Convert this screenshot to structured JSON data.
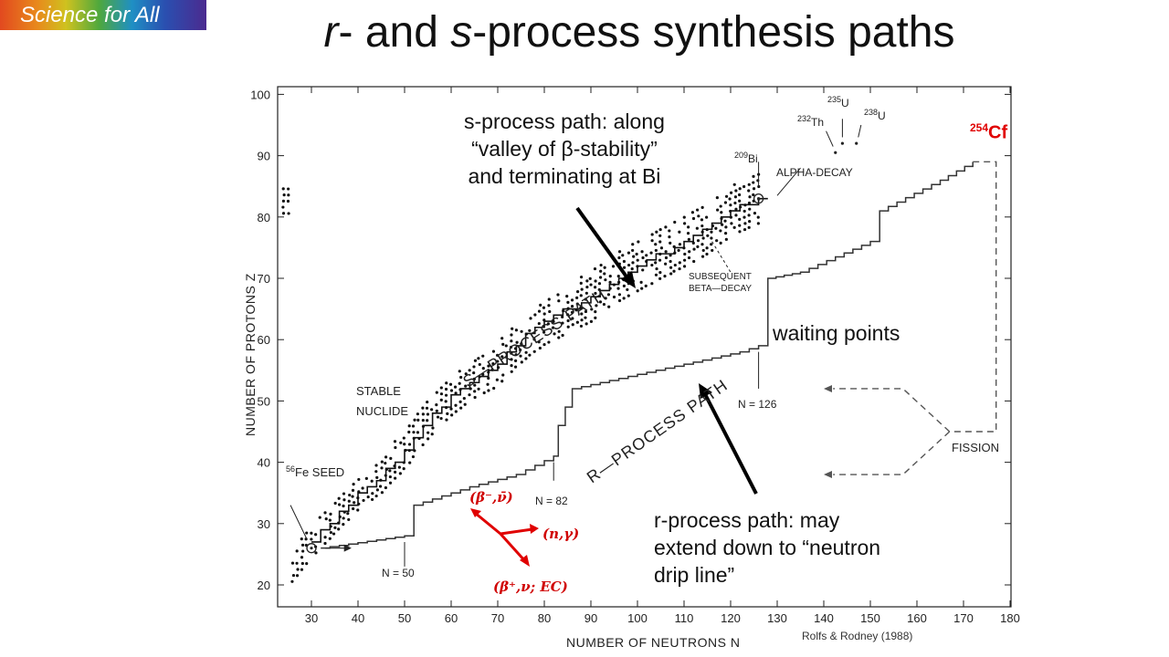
{
  "badge": {
    "text": "Science for All"
  },
  "title": {
    "part1": "r",
    "part2": "- and ",
    "part3": "s",
    "part4": "-process synthesis paths"
  },
  "chart_data": {
    "type": "diagram",
    "xlabel": "NUMBER OF NEUTRONS N",
    "ylabel": "NUMBER OF PROTONS Z",
    "xlim": [
      25,
      180
    ],
    "ylim": [
      20,
      100
    ],
    "x_ticks": [
      30,
      40,
      50,
      60,
      70,
      80,
      90,
      100,
      110,
      120,
      130,
      140,
      150,
      160,
      170,
      180
    ],
    "y_ticks": [
      20,
      30,
      40,
      50,
      60,
      70,
      80,
      90,
      100
    ],
    "stable_nuclide_band": [
      [
        26,
        23
      ],
      [
        30,
        27
      ],
      [
        35,
        31
      ],
      [
        40,
        35
      ],
      [
        45,
        38
      ],
      [
        50,
        42
      ],
      [
        55,
        47
      ],
      [
        60,
        51
      ],
      [
        65,
        54
      ],
      [
        70,
        56
      ],
      [
        75,
        60
      ],
      [
        80,
        63
      ],
      [
        85,
        65
      ],
      [
        90,
        67
      ],
      [
        95,
        70
      ],
      [
        100,
        72
      ],
      [
        105,
        74
      ],
      [
        110,
        76
      ],
      [
        115,
        78
      ],
      [
        120,
        81
      ],
      [
        126,
        83
      ]
    ],
    "r_process_path": [
      [
        32,
        26
      ],
      [
        50,
        28
      ],
      [
        52,
        33
      ],
      [
        56,
        34
      ],
      [
        64,
        36
      ],
      [
        74,
        38
      ],
      [
        82,
        41
      ],
      [
        83,
        46
      ],
      [
        86,
        52
      ],
      [
        98,
        54
      ],
      [
        110,
        56
      ],
      [
        122,
        58
      ],
      [
        126,
        59
      ],
      [
        128,
        70
      ],
      [
        135,
        71
      ],
      [
        150,
        76
      ],
      [
        152,
        81
      ],
      [
        165,
        86
      ],
      [
        172,
        89
      ]
    ],
    "fission_loop": [
      [
        172,
        89
      ],
      [
        177,
        89
      ],
      [
        177,
        45
      ],
      [
        167,
        45
      ]
    ],
    "fission_arrow_targets": [
      [
        140,
        52
      ],
      [
        140,
        38
      ]
    ],
    "labels": {
      "fe_seed": "SEED",
      "fe_seed_sup": "56",
      "fe_seed_el": "Fe",
      "stable_nuclide_1": "STABLE",
      "stable_nuclide_2": "NUCLIDE",
      "s_process_path": "S—PROCESS PATH",
      "r_process_path": "R—PROCESS PATH",
      "subsequent_1": "SUBSEQUENT",
      "subsequent_2": "BETA—DECAY",
      "alpha_decay": "ALPHA-DECAY",
      "fission": "FISSION",
      "n50": "N = 50",
      "n82": "N = 82",
      "n126": "N = 126",
      "bi209_sup": "209",
      "bi209_el": "Bi",
      "th232_sup": "232",
      "th232_el": "Th",
      "u235_sup": "235",
      "u235_el": "U",
      "u238_sup": "238",
      "u238_el": "U",
      "source": "Rolfs & Rodney (1988)"
    }
  },
  "annotations": {
    "s_process": [
      "s-process path: along",
      "“valley of β-stability”",
      "and terminating at Bi"
    ],
    "waiting_points": "waiting points",
    "r_process": [
      "r-process path: may",
      "extend down to “neutron",
      "drip line”"
    ],
    "cf_sup": "254",
    "cf_el": "Cf"
  },
  "reactions": {
    "beta_minus": "(β⁻,ν̄)",
    "n_gamma": "(n,γ)",
    "beta_plus": "(β⁺,ν; EC)"
  },
  "colors": {
    "accent_red": "#e00000",
    "ink": "#222222"
  }
}
